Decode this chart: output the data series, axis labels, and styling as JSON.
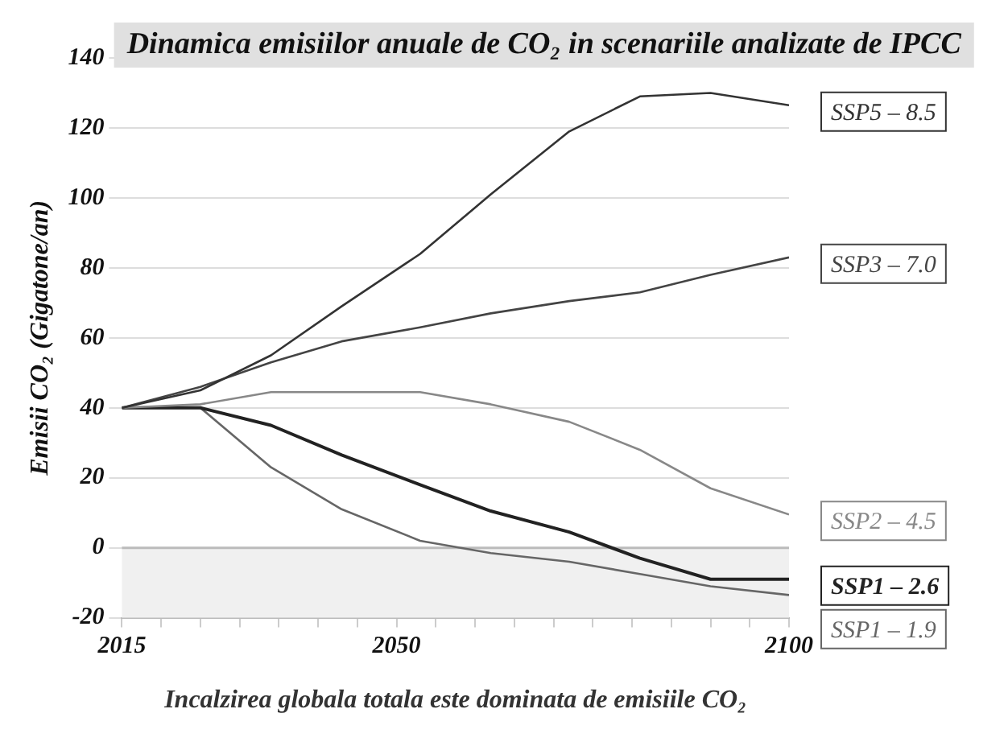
{
  "chart_data": {
    "type": "line",
    "title": "Dinamica emisiilor anuale de CO₂ in scenariile analizate de IPCC",
    "xlabel": "Incalzirea globala totala este dominata de emisiile CO₂",
    "ylabel": "Emisii CO₂ (Gigatone/an)",
    "x": [
      2015,
      2025,
      2034,
      2043,
      2053,
      2062,
      2072,
      2081,
      2090,
      2100
    ],
    "series": [
      {
        "name": "SSP5 – 8.5",
        "color": "#333333",
        "values": [
          40,
          45,
          55,
          69,
          84,
          101,
          119,
          129,
          130,
          126.5
        ]
      },
      {
        "name": "SSP3 – 7.0",
        "color": "#444444",
        "values": [
          40,
          46,
          53,
          59,
          63,
          67,
          70.5,
          73,
          78,
          83
        ]
      },
      {
        "name": "SSP2 – 4.5",
        "color": "#888888",
        "values": [
          40,
          41,
          44.5,
          44.5,
          44.5,
          41,
          36,
          28,
          17,
          9.5
        ]
      },
      {
        "name": "SSP1 – 2.6",
        "color": "#222222",
        "values": [
          40,
          40,
          35,
          26.5,
          18,
          10.5,
          4.5,
          -3,
          -9,
          -9
        ]
      },
      {
        "name": "SSP1 – 1.9",
        "color": "#666666",
        "values": [
          40,
          40,
          23,
          11,
          2,
          -1.5,
          -4,
          -7.5,
          -11,
          -13.5
        ]
      }
    ],
    "xlim": [
      2015,
      2100
    ],
    "xticks": [
      2015,
      {
        "value": 2020,
        "label": null
      },
      {
        "value": 2025,
        "label": null
      },
      {
        "value": 2030,
        "label": null
      },
      {
        "value": 2035,
        "label": null
      },
      {
        "value": 2040,
        "label": null
      },
      {
        "value": 2045,
        "label": null
      },
      2050,
      {
        "value": 2055,
        "label": null
      },
      {
        "value": 2060,
        "label": null
      },
      {
        "value": 2065,
        "label": null
      },
      {
        "value": 2070,
        "label": null
      },
      {
        "value": 2075,
        "label": null
      },
      {
        "value": 2080,
        "label": null
      },
      {
        "value": 2085,
        "label": null
      },
      {
        "value": 2090,
        "label": null
      },
      {
        "value": 2095,
        "label": null
      },
      2100
    ],
    "ylim": [
      -20,
      140
    ],
    "yticks": [
      -20,
      0,
      20,
      40,
      60,
      80,
      100,
      120,
      140
    ],
    "bands": [
      {
        "axis": "y",
        "from": -20,
        "to": 0,
        "color": "#f0f0f0"
      }
    ],
    "grid": "y",
    "legend": false,
    "marker": "none",
    "line_style": "solid"
  }
}
